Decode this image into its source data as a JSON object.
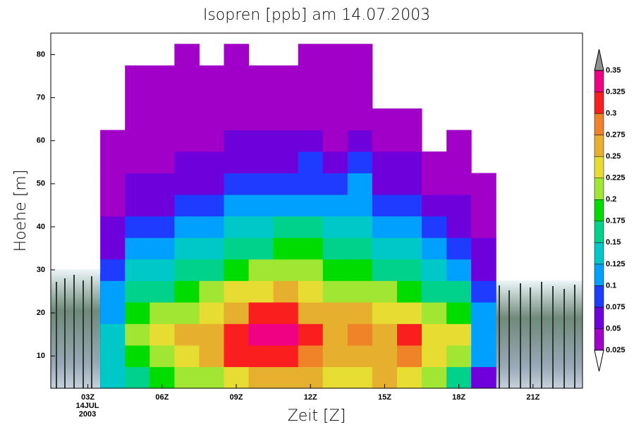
{
  "chart_data": {
    "type": "contour",
    "title": "Isopren [ppb] am 14.07.2003",
    "x_label": "Zeit [Z]",
    "y_label": "Hoehe [m]",
    "date_label": [
      "14JUL",
      "2003"
    ],
    "xlim": [
      1.5,
      23
    ],
    "ylim": [
      2.5,
      85
    ],
    "xticks": [
      {
        "value": 3,
        "label": "03Z"
      },
      {
        "value": 6,
        "label": "06Z"
      },
      {
        "value": 9,
        "label": "09Z"
      },
      {
        "value": 12,
        "label": "12Z"
      },
      {
        "value": 15,
        "label": "15Z"
      },
      {
        "value": 18,
        "label": "18Z"
      },
      {
        "value": 21,
        "label": "21Z"
      }
    ],
    "yticks": [
      10,
      20,
      30,
      40,
      50,
      60,
      70,
      80
    ],
    "levels": [
      0.025,
      0.05,
      0.075,
      0.1,
      0.125,
      0.15,
      0.175,
      0.2,
      0.225,
      0.25,
      0.275,
      0.3,
      0.325,
      0.35
    ],
    "colors": [
      "#ffffff",
      "#a000c8",
      "#6e00dc",
      "#1e3cff",
      "#00a0ff",
      "#00c8c8",
      "#00d28c",
      "#00dc00",
      "#a0e632",
      "#e6dc32",
      "#e6af2d",
      "#f08228",
      "#fa1e1e",
      "#f00082",
      "#909090"
    ],
    "x": [
      4,
      5,
      6,
      7,
      8,
      9,
      10,
      11,
      12,
      13,
      14,
      15,
      16,
      17,
      18,
      19
    ],
    "y": [
      5,
      10,
      15,
      20,
      25,
      30,
      35,
      40,
      45,
      50,
      55,
      60,
      65,
      70,
      75,
      80
    ],
    "z": [
      [
        0.13,
        0.14,
        0.13,
        0.12,
        0.1,
        0.08,
        0.07,
        0.05,
        0.04,
        0.035,
        0.03,
        0.03,
        null,
        null,
        null,
        null
      ],
      [
        0.15,
        0.19,
        0.2,
        0.18,
        0.15,
        0.13,
        0.1,
        0.08,
        0.06,
        0.05,
        0.04,
        0.035,
        0.03,
        0.03,
        0.03,
        null
      ],
      [
        0.18,
        0.22,
        0.23,
        0.2,
        0.17,
        0.14,
        0.11,
        0.09,
        0.07,
        0.055,
        0.045,
        0.04,
        0.035,
        0.03,
        0.03,
        null
      ],
      [
        0.2,
        0.24,
        0.25,
        0.22,
        0.19,
        0.16,
        0.13,
        0.11,
        0.08,
        0.06,
        0.05,
        0.04,
        0.035,
        0.03,
        0.03,
        0.03
      ],
      [
        0.22,
        0.26,
        0.27,
        0.24,
        0.2,
        0.17,
        0.14,
        0.12,
        0.09,
        0.07,
        0.055,
        0.045,
        0.035,
        0.03,
        0.03,
        null
      ],
      [
        0.24,
        0.3,
        0.31,
        0.27,
        0.23,
        0.19,
        0.16,
        0.13,
        0.1,
        0.08,
        0.06,
        0.05,
        0.04,
        0.035,
        0.03,
        0.03
      ],
      [
        0.26,
        0.32,
        0.33,
        0.3,
        0.24,
        0.2,
        0.17,
        0.14,
        0.11,
        0.085,
        0.065,
        0.05,
        0.04,
        0.035,
        0.03,
        null
      ],
      [
        0.26,
        0.32,
        0.33,
        0.31,
        0.25,
        0.21,
        0.18,
        0.15,
        0.12,
        0.09,
        0.07,
        0.055,
        0.045,
        0.035,
        0.03,
        null
      ],
      [
        0.25,
        0.29,
        0.3,
        0.27,
        0.24,
        0.21,
        0.18,
        0.15,
        0.12,
        0.095,
        0.075,
        0.06,
        0.045,
        0.04,
        0.035,
        0.03
      ],
      [
        0.24,
        0.27,
        0.27,
        0.25,
        0.22,
        0.19,
        0.16,
        0.13,
        0.1,
        0.08,
        0.06,
        0.045,
        0.04,
        0.035,
        0.03,
        0.03
      ],
      [
        0.24,
        0.27,
        0.28,
        0.25,
        0.22,
        0.19,
        0.17,
        0.14,
        0.12,
        0.1,
        0.08,
        0.06,
        0.045,
        0.035,
        0.03,
        0.03
      ],
      [
        0.25,
        0.27,
        0.27,
        0.24,
        0.2,
        0.17,
        0.14,
        0.11,
        0.09,
        0.07,
        0.05,
        0.04,
        0.03,
        null,
        null,
        null
      ],
      [
        0.24,
        0.28,
        0.3,
        0.24,
        0.19,
        0.16,
        0.13,
        0.1,
        0.08,
        0.06,
        0.05,
        0.04,
        0.03,
        null,
        null,
        null
      ],
      [
        0.2,
        0.24,
        0.24,
        0.2,
        0.16,
        0.13,
        0.1,
        0.08,
        0.06,
        0.045,
        0.035,
        null,
        null,
        null,
        null,
        null
      ],
      [
        0.17,
        0.22,
        0.23,
        0.19,
        0.15,
        0.12,
        0.09,
        0.07,
        0.055,
        0.045,
        0.04,
        0.03,
        null,
        null,
        null,
        null
      ],
      [
        0.07,
        0.1,
        0.12,
        0.1,
        0.08,
        0.06,
        0.05,
        0.04,
        0.035,
        0.03,
        null,
        null,
        null,
        null,
        null,
        null
      ]
    ]
  }
}
